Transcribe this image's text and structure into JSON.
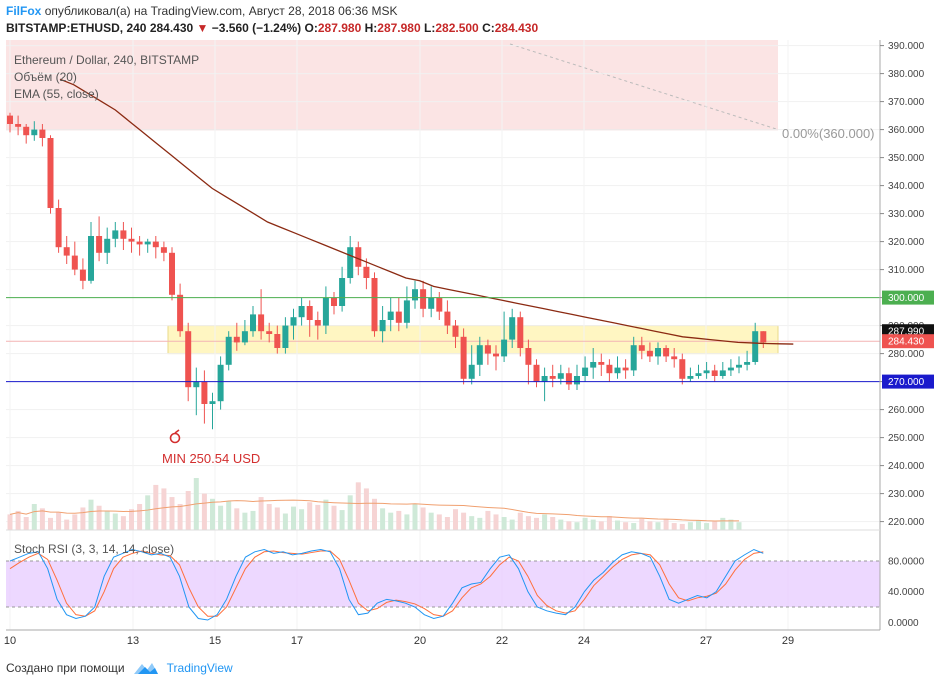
{
  "header": {
    "brand": "FilFox",
    "published": "опубликовал(а) на TradingView.com, Август 28, 2018 06:36 MSK",
    "symbol": "BITSTAMP:ETHUSD, 240",
    "last": "284.430",
    "change": "−3.560 (−1.24%)",
    "o_label": "O:",
    "o": "287.980",
    "h_label": "H:",
    "h": "287.980",
    "l_label": "L:",
    "l": "282.500",
    "c_label": "C:",
    "c": "284.430"
  },
  "legend": {
    "title": "Ethereum / Dollar, 240, BITSTAMP",
    "volume": "Объём (20)",
    "ema": "EMA (55, close)",
    "stoch": "Stoch RSI (3, 3, 14, 14, close)"
  },
  "annotations": {
    "fib": "0.00%(360.000)",
    "min": "MIN 250.54 USD"
  },
  "footer": {
    "created": "Создано при помощи",
    "tv": "TradingView"
  },
  "colors": {
    "up": "#26a69a",
    "down": "#ef5350",
    "ema": "#8b2a12",
    "green_line": "#4caf50",
    "blue_line": "#1a1acc",
    "zone": "#fff6c2",
    "top_zone": "#fbe4e4",
    "stoch_band": "#e6c8ff",
    "stoch_k": "#2196f3",
    "stoch_d": "#ff6f3c"
  },
  "chart_data": {
    "type": "candlestick",
    "symbol": "ETHUSD",
    "timeframe": "240",
    "ylim": [
      217,
      392
    ],
    "y_ticks": [
      220,
      230,
      240,
      250,
      260,
      270,
      280,
      290,
      300,
      310,
      320,
      330,
      340,
      350,
      360,
      370,
      380,
      390
    ],
    "x_tick_labels": [
      "10",
      "13",
      "15",
      "17",
      "20",
      "22",
      "24",
      "27",
      "29"
    ],
    "horizontal_levels": [
      {
        "value": 300.0,
        "label": "300.000",
        "color": "#4caf50"
      },
      {
        "value": 270.0,
        "label": "270.000",
        "color": "#1a1acc"
      }
    ],
    "price_labels": [
      {
        "value": 287.99,
        "label": "287.990",
        "color": "#111"
      },
      {
        "value": 284.43,
        "label": "284.430",
        "color": "#ef5350"
      }
    ],
    "zones": [
      {
        "from": 280,
        "to": 290,
        "color": "#fff6c2"
      },
      {
        "from": 360,
        "to": 392,
        "color": "#fbe4e4"
      }
    ],
    "min_value": 250.54,
    "candles": [
      [
        365,
        362,
        366,
        359
      ],
      [
        362,
        361,
        365,
        358
      ],
      [
        361,
        358,
        362,
        355
      ],
      [
        358,
        360,
        363,
        356
      ],
      [
        360,
        357,
        362,
        354
      ],
      [
        357,
        332,
        358,
        330
      ],
      [
        332,
        318,
        335,
        316
      ],
      [
        318,
        315,
        322,
        312
      ],
      [
        315,
        310,
        320,
        308
      ],
      [
        310,
        306,
        314,
        303
      ],
      [
        306,
        322,
        327,
        305
      ],
      [
        322,
        316,
        329,
        313
      ],
      [
        316,
        321,
        325,
        312
      ],
      [
        321,
        324,
        327,
        318
      ],
      [
        324,
        321,
        327,
        317
      ],
      [
        321,
        320,
        325,
        316
      ],
      [
        320,
        319,
        322,
        315
      ],
      [
        319,
        320,
        321,
        316
      ],
      [
        320,
        318,
        322,
        314
      ],
      [
        318,
        316,
        320,
        313
      ],
      [
        316,
        301,
        318,
        299
      ],
      [
        301,
        288,
        305,
        286
      ],
      [
        288,
        268,
        291,
        263
      ],
      [
        268,
        270,
        275,
        258
      ],
      [
        270,
        262,
        274,
        255
      ],
      [
        262,
        263,
        266,
        253
      ],
      [
        263,
        276,
        279,
        260
      ],
      [
        276,
        286,
        288,
        274
      ],
      [
        286,
        284,
        291,
        281
      ],
      [
        284,
        288,
        292,
        283
      ],
      [
        288,
        294,
        297,
        286
      ],
      [
        294,
        288,
        303,
        285
      ],
      [
        288,
        287,
        291,
        284
      ],
      [
        287,
        282,
        290,
        280
      ],
      [
        282,
        290,
        293,
        280
      ],
      [
        290,
        293,
        296,
        285
      ],
      [
        293,
        297,
        300,
        290
      ],
      [
        297,
        292,
        299,
        286
      ],
      [
        292,
        290,
        295,
        285
      ],
      [
        290,
        300,
        304,
        287
      ],
      [
        300,
        297,
        302,
        294
      ],
      [
        297,
        307,
        311,
        295
      ],
      [
        307,
        318,
        322,
        305
      ],
      [
        318,
        311,
        320,
        308
      ],
      [
        311,
        307,
        314,
        303
      ],
      [
        307,
        288,
        309,
        286
      ],
      [
        288,
        292,
        297,
        284
      ],
      [
        292,
        295,
        300,
        288
      ],
      [
        295,
        291,
        300,
        288
      ],
      [
        291,
        299,
        304,
        289
      ],
      [
        299,
        303,
        306,
        296
      ],
      [
        303,
        296,
        306,
        293
      ],
      [
        296,
        300,
        304,
        293
      ],
      [
        300,
        295,
        302,
        292
      ],
      [
        295,
        290,
        299,
        287
      ],
      [
        290,
        286,
        292,
        282
      ],
      [
        286,
        271,
        289,
        269
      ],
      [
        271,
        276,
        283,
        269
      ],
      [
        276,
        283,
        286,
        272
      ],
      [
        283,
        280,
        285,
        276
      ],
      [
        280,
        279,
        283,
        274
      ],
      [
        279,
        285,
        295,
        277
      ],
      [
        285,
        293,
        296,
        282
      ],
      [
        293,
        282,
        295,
        279
      ],
      [
        282,
        276,
        285,
        269
      ],
      [
        276,
        270,
        278,
        268
      ],
      [
        270,
        272,
        275,
        263
      ],
      [
        272,
        271,
        276,
        268
      ],
      [
        271,
        273,
        276,
        269
      ],
      [
        273,
        269,
        275,
        267
      ],
      [
        269,
        272,
        276,
        267
      ],
      [
        272,
        275,
        279,
        270
      ],
      [
        275,
        277,
        282,
        271
      ],
      [
        277,
        276,
        280,
        272
      ],
      [
        276,
        273,
        278,
        270
      ],
      [
        273,
        275,
        279,
        271
      ],
      [
        275,
        274,
        278,
        271
      ],
      [
        274,
        283,
        286,
        272
      ],
      [
        283,
        281,
        286,
        278
      ],
      [
        281,
        279,
        284,
        277
      ],
      [
        279,
        282,
        284,
        276
      ],
      [
        282,
        279,
        283,
        277
      ],
      [
        279,
        278,
        282,
        275
      ],
      [
        278,
        271,
        280,
        269
      ],
      [
        271,
        272,
        275,
        270
      ],
      [
        272,
        273,
        276,
        271
      ],
      [
        273,
        274,
        277,
        271
      ],
      [
        274,
        272,
        276,
        270
      ],
      [
        272,
        274,
        277,
        271
      ],
      [
        274,
        275,
        278,
        272
      ],
      [
        275,
        276,
        279,
        273
      ],
      [
        276,
        277,
        281,
        274
      ],
      [
        277,
        288,
        291,
        276
      ],
      [
        288,
        284,
        288,
        282
      ]
    ],
    "ema": [
      378,
      376,
      373,
      370,
      367,
      363,
      359,
      355,
      351,
      347,
      343,
      339,
      336,
      333,
      330,
      327,
      325,
      323,
      321,
      319,
      317,
      315,
      313,
      311,
      309,
      307,
      306,
      304,
      303,
      302,
      301,
      300,
      299,
      298,
      297,
      296,
      295,
      294,
      293,
      292,
      291,
      290,
      289,
      288,
      287,
      286,
      285.5,
      285,
      284.5,
      284,
      283.8,
      283.6,
      283.5,
      283.4
    ],
    "volume": [
      18,
      22,
      15,
      30,
      25,
      14,
      20,
      12,
      18,
      26,
      35,
      28,
      22,
      19,
      16,
      24,
      30,
      40,
      52,
      48,
      38,
      30,
      45,
      60,
      42,
      36,
      28,
      33,
      25,
      20,
      22,
      38,
      30,
      26,
      19,
      27,
      24,
      32,
      29,
      35,
      28,
      23,
      40,
      55,
      48,
      36,
      25,
      20,
      22,
      18,
      30,
      26,
      20,
      18,
      15,
      24,
      20,
      16,
      14,
      22,
      18,
      15,
      12,
      20,
      16,
      14,
      18,
      15,
      12,
      10,
      9,
      14,
      12,
      10,
      16,
      11,
      9,
      8,
      13,
      10,
      9,
      12,
      8,
      7,
      9,
      11,
      8,
      10,
      14,
      12,
      9
    ],
    "stoch_rsi": {
      "ylim": [
        -10,
        110
      ],
      "ticks": [
        0,
        40,
        80
      ],
      "tick_labels": [
        "0.0000",
        "40.0000",
        "80.0000"
      ],
      "k": [
        80,
        85,
        90,
        92,
        70,
        30,
        10,
        5,
        8,
        20,
        60,
        85,
        90,
        95,
        92,
        88,
        90,
        85,
        60,
        20,
        5,
        3,
        10,
        30,
        60,
        85,
        92,
        95,
        90,
        92,
        88,
        90,
        93,
        95,
        92,
        70,
        30,
        10,
        12,
        25,
        30,
        28,
        25,
        20,
        10,
        5,
        8,
        25,
        45,
        50,
        52,
        70,
        85,
        88,
        70,
        40,
        20,
        15,
        12,
        10,
        20,
        40,
        55,
        65,
        78,
        88,
        92,
        90,
        85,
        60,
        30,
        25,
        30,
        35,
        32,
        40,
        60,
        80,
        88,
        95,
        90
      ],
      "d": [
        70,
        78,
        85,
        90,
        82,
        55,
        25,
        10,
        8,
        15,
        40,
        70,
        85,
        90,
        93,
        90,
        88,
        87,
        75,
        45,
        20,
        8,
        8,
        20,
        45,
        70,
        85,
        92,
        93,
        91,
        90,
        89,
        91,
        93,
        93,
        82,
        55,
        25,
        15,
        18,
        26,
        29,
        27,
        24,
        18,
        10,
        8,
        15,
        32,
        45,
        50,
        60,
        75,
        85,
        80,
        60,
        35,
        22,
        15,
        12,
        15,
        30,
        48,
        60,
        72,
        82,
        88,
        90,
        88,
        75,
        50,
        32,
        28,
        32,
        34,
        38,
        50,
        68,
        82,
        90,
        92
      ]
    }
  }
}
